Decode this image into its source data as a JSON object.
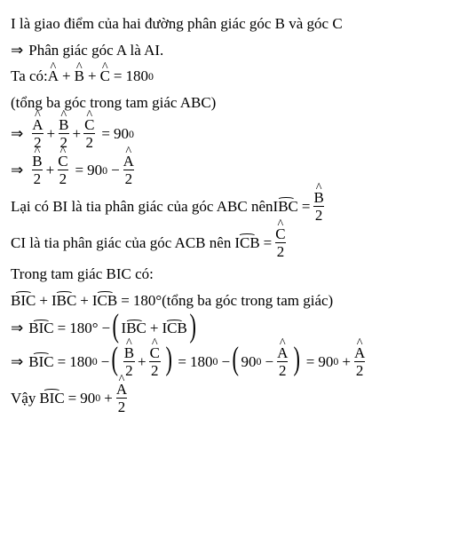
{
  "line1": "I là giao điểm của hai đường phân giác góc B và góc C",
  "arrow": "⇒",
  "line2": " Phân giác góc A là AI.",
  "line3_pre": "Ta có: ",
  "A": "A",
  "B": "B",
  "C": "C",
  "plus": "+",
  "minus": "−",
  "eq": "=",
  "eq180": "180",
  "deg": "0",
  "line4": "(tổng ba góc trong tam giác ABC)",
  "two": "2",
  "eq90": "90",
  "line7_pre": "Lại có BI là tia phân giác của góc ABC nên ",
  "IBC": "IBC",
  "line8_pre": "CI là tia phân giác của góc ACB nên ",
  "ICB": "ICB",
  "line9": "Trong tam giác BIC có:",
  "BIC": "BIC",
  "line10_tail": "(tổng ba góc trong tam giác)",
  "d180": "180°",
  "degtxt": "0",
  "Vay": "Vậy "
}
